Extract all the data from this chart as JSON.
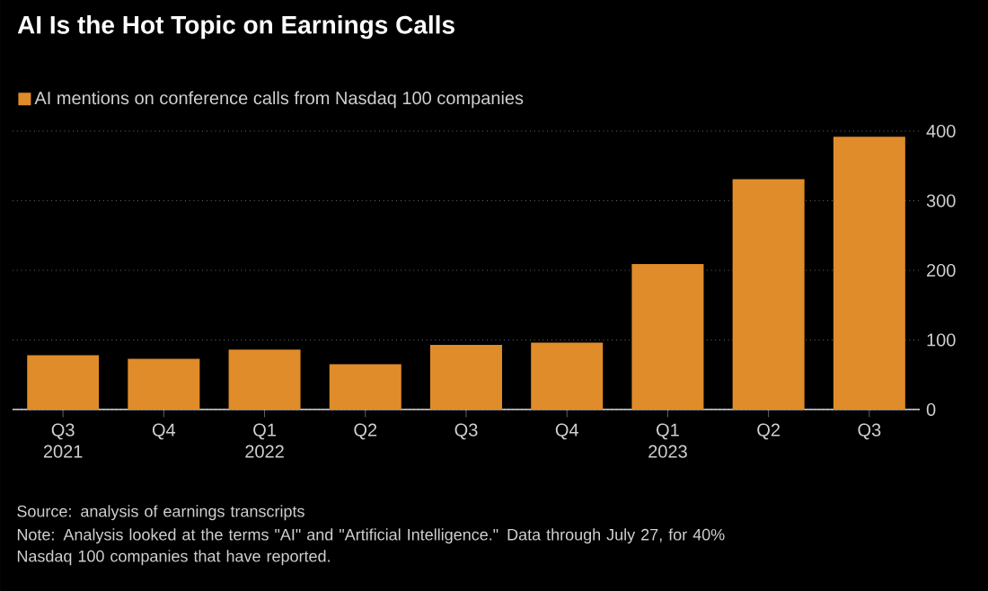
{
  "chart_data": {
    "type": "bar",
    "title": "AI Is the Hot Topic on Earnings Calls",
    "categories": [
      "Q3 2021",
      "Q4",
      "Q1 2022",
      "Q2",
      "Q3",
      "Q4",
      "Q1 2023",
      "Q2",
      "Q3"
    ],
    "series": [
      {
        "name": "AI mentions on conference calls from Nasdaq 100 companies",
        "color": "#e08c2a",
        "values": [
          78,
          73,
          86,
          65,
          93,
          96,
          209,
          331,
          392
        ]
      }
    ],
    "ylim": [
      0,
      400
    ],
    "yticks": [
      0,
      100,
      200,
      300,
      400
    ],
    "grid": "y",
    "legend": "top left",
    "annotations": [
      "Source: analysis of earnings transcripts",
      "Note: Analysis looked at the terms \"AI\" and \"Artificial Intelligence.\" Data through July 27, for 40% Nasdaq 100 companies that have reported."
    ]
  }
}
